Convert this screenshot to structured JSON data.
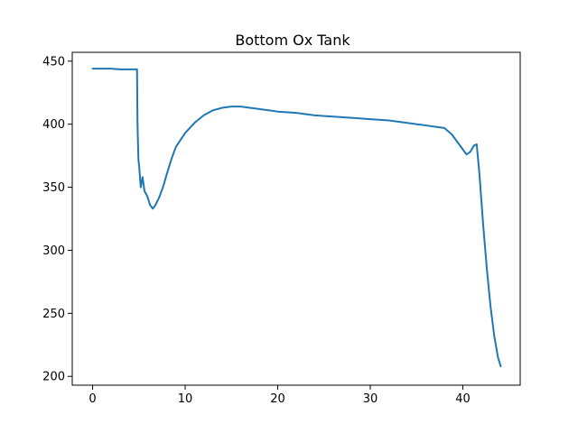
{
  "chart_data": {
    "type": "line",
    "title": "Bottom Ox Tank",
    "xlabel": "",
    "ylabel": "",
    "xlim": [
      -2.2,
      46.2
    ],
    "ylim": [
      193,
      457
    ],
    "xticks": [
      0,
      10,
      20,
      30,
      40
    ],
    "yticks": [
      200,
      250,
      300,
      350,
      400,
      450
    ],
    "xtick_labels": [
      "0",
      "10",
      "20",
      "30",
      "40"
    ],
    "ytick_labels": [
      "200",
      "250",
      "300",
      "350",
      "400",
      "450"
    ],
    "grid": false,
    "legend": "none",
    "series": [
      {
        "color": "#1f77b4",
        "x": [
          0,
          1,
          2,
          3,
          4,
          4.8,
          4.85,
          4.95,
          5.05,
          5.2,
          5.4,
          5.6,
          5.9,
          6.2,
          6.5,
          6.8,
          7.2,
          7.6,
          8,
          8.5,
          9,
          10,
          11,
          12,
          13,
          14,
          15,
          16,
          17,
          18,
          19,
          20,
          22,
          24,
          26,
          28,
          30,
          32,
          34,
          36,
          38,
          38.8,
          39.5,
          40,
          40.4,
          40.8,
          41.2,
          41.5,
          41.8,
          42.2,
          42.6,
          43,
          43.4,
          43.8,
          44.1
        ],
        "y": [
          444,
          444,
          444,
          443.5,
          443.5,
          443.5,
          400,
          372,
          365,
          350,
          358,
          347,
          343,
          336,
          333,
          336,
          342,
          350,
          360,
          372,
          382,
          393,
          401,
          407,
          411,
          413,
          414,
          414,
          413,
          412,
          411,
          410,
          409,
          407,
          406,
          405,
          404,
          403,
          401,
          399,
          397,
          392,
          385,
          380,
          376,
          378,
          383,
          384,
          360,
          320,
          285,
          255,
          232,
          215,
          208
        ]
      }
    ]
  }
}
